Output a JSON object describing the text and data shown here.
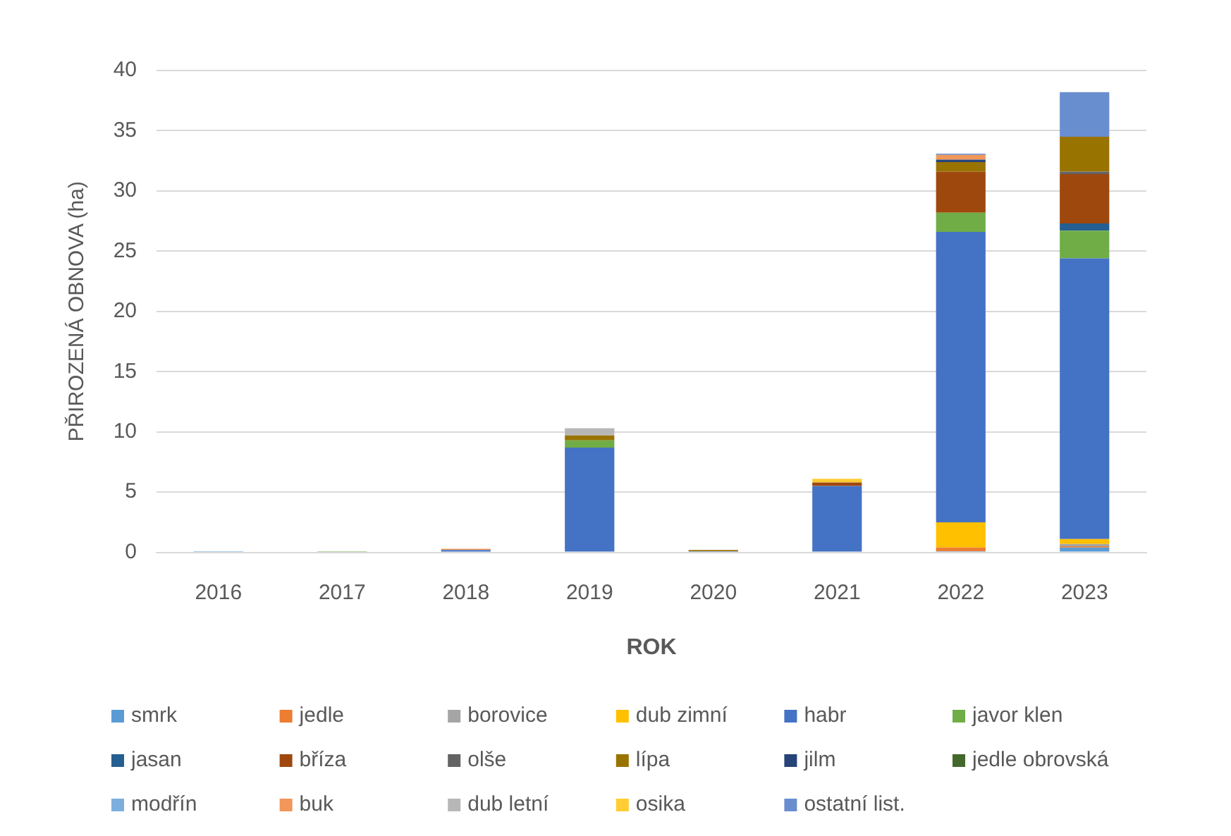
{
  "chart_data": {
    "type": "bar",
    "stacked": true,
    "xlabel": "ROK",
    "ylabel": "PŘIROZENÁ OBNOVA (ha)",
    "categories": [
      "2016",
      "2017",
      "2018",
      "2019",
      "2020",
      "2021",
      "2022",
      "2023"
    ],
    "ylim": [
      0,
      40
    ],
    "yticks": [
      0,
      5,
      10,
      15,
      20,
      25,
      30,
      35,
      40
    ],
    "grid": "y",
    "legend": "bottom",
    "series": [
      {
        "name": "smrk",
        "color": "#5b9bd5",
        "values": [
          0.1,
          null,
          null,
          null,
          null,
          null,
          0.1,
          0.4
        ]
      },
      {
        "name": "jedle",
        "color": "#ed7d31",
        "values": [
          null,
          null,
          null,
          null,
          null,
          null,
          0.3,
          0.1
        ]
      },
      {
        "name": "borovice",
        "color": "#a5a5a5",
        "values": [
          null,
          null,
          null,
          null,
          null,
          null,
          null,
          0.2
        ]
      },
      {
        "name": "dub zimní",
        "color": "#ffc000",
        "values": [
          null,
          null,
          null,
          null,
          null,
          null,
          2.1,
          0.4
        ]
      },
      {
        "name": "habr",
        "color": "#4472c4",
        "values": [
          null,
          null,
          0.2,
          8.7,
          0.1,
          5.5,
          24.1,
          23.3
        ]
      },
      {
        "name": "javor klen",
        "color": "#70ad47",
        "values": [
          null,
          0.1,
          null,
          0.6,
          null,
          null,
          1.6,
          2.3
        ]
      },
      {
        "name": "jasan",
        "color": "#255e91",
        "values": [
          null,
          null,
          null,
          null,
          null,
          null,
          null,
          0.6
        ]
      },
      {
        "name": "bříza",
        "color": "#9e480e",
        "values": [
          null,
          null,
          null,
          null,
          null,
          0.3,
          3.4,
          4.1
        ]
      },
      {
        "name": "olše",
        "color": "#636363",
        "values": [
          null,
          null,
          null,
          null,
          null,
          null,
          null,
          0.2
        ]
      },
      {
        "name": "lípa",
        "color": "#997300",
        "values": [
          null,
          null,
          null,
          0.4,
          0.1,
          null,
          0.8,
          2.9
        ]
      },
      {
        "name": "jilm",
        "color": "#264478",
        "values": [
          null,
          null,
          null,
          null,
          null,
          null,
          0.2,
          null
        ]
      },
      {
        "name": "jedle obrovská",
        "color": "#43682b",
        "values": [
          null,
          null,
          null,
          null,
          null,
          null,
          null,
          null
        ]
      },
      {
        "name": "modřín",
        "color": "#7cafdd",
        "values": [
          null,
          null,
          null,
          null,
          null,
          null,
          null,
          null
        ]
      },
      {
        "name": "buk",
        "color": "#f1975a",
        "values": [
          null,
          null,
          0.1,
          null,
          null,
          null,
          0.4,
          null
        ]
      },
      {
        "name": "dub letní",
        "color": "#b7b7b7",
        "values": [
          null,
          null,
          null,
          0.6,
          null,
          null,
          null,
          null
        ]
      },
      {
        "name": "osika",
        "color": "#ffcd33",
        "values": [
          null,
          null,
          null,
          null,
          null,
          0.3,
          null,
          null
        ]
      },
      {
        "name": "ostatní list.",
        "color": "#698ed0",
        "values": [
          null,
          null,
          null,
          null,
          null,
          null,
          0.1,
          3.7
        ]
      }
    ]
  }
}
